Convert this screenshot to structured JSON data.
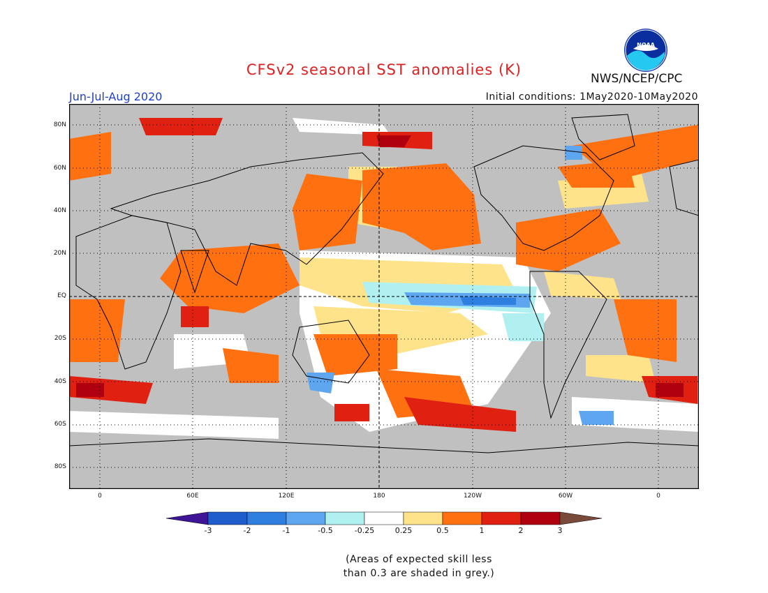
{
  "header": {
    "title": "CFSv2 seasonal SST anomalies (K)",
    "season": "Jun-Jul-Aug 2020",
    "initial_conditions": "Initial conditions: 1May2020-10May2020",
    "agency": "NWS/NCEP/CPC",
    "logo_text": "NOAA"
  },
  "map": {
    "lat_labels": [
      "80N",
      "60N",
      "40N",
      "20N",
      "EQ",
      "20S",
      "40S",
      "60S",
      "80S"
    ],
    "lon_labels": [
      "0",
      "60E",
      "120E",
      "180",
      "120W",
      "60W",
      "0"
    ],
    "colors": {
      "land": "#c0c0c0",
      "grey_mask": "#c0c0c0",
      "neutral": "#ffffff",
      "coast": "#000000"
    }
  },
  "colorbar": {
    "labels": [
      "-3",
      "-2",
      "-1",
      "-0.5",
      "-0.25",
      "0.25",
      "0.5",
      "1",
      "2",
      "3"
    ],
    "colors": [
      "#3d1596",
      "#1f5ccc",
      "#2f7fe0",
      "#5fa6f0",
      "#b0f0f0",
      "#ffffff",
      "#ffe38a",
      "#ff7010",
      "#e02010",
      "#b00010",
      "#7a4a3a"
    ]
  },
  "footnote": {
    "line1": "(Areas of expected skill less",
    "line2": "than 0.3 are shaded in grey.)"
  }
}
